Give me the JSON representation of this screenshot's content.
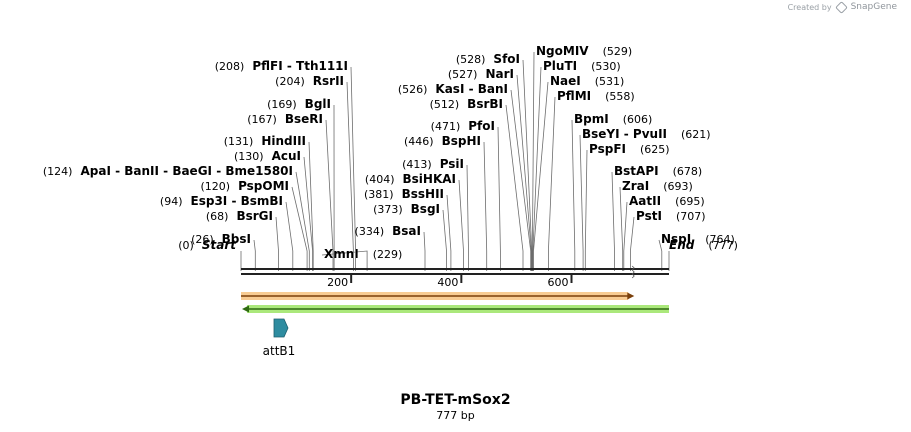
{
  "credit": {
    "prefix": "Created by",
    "brand": "SnapGene"
  },
  "sequence": {
    "name": "PB-TET-mSox2",
    "length_label": "777 bp",
    "length": 777
  },
  "ruler": {
    "ticks": [
      "200",
      "400",
      "600"
    ],
    "tick_values": [
      200,
      400,
      600
    ]
  },
  "sites": [
    {
      "names": [
        "NspI"
      ],
      "pos": 764
    },
    {
      "names": [
        "PstI"
      ],
      "pos": 707
    },
    {
      "names": [
        "AatII"
      ],
      "pos": 695
    },
    {
      "names": [
        "ZraI"
      ],
      "pos": 693
    },
    {
      "names": [
        "BstAPI"
      ],
      "pos": 678
    },
    {
      "names": [
        "PspFI"
      ],
      "pos": 625
    },
    {
      "names": [
        "BseYI",
        "PvuII"
      ],
      "pos": 621
    },
    {
      "names": [
        "BpmI"
      ],
      "pos": 606
    },
    {
      "names": [
        "PflMI"
      ],
      "pos": 558
    },
    {
      "names": [
        "NaeI"
      ],
      "pos": 531
    },
    {
      "names": [
        "PluTI"
      ],
      "pos": 530
    },
    {
      "names": [
        "NgoMIV"
      ],
      "pos": 529
    },
    {
      "names": [
        "SfoI"
      ],
      "pos": 528
    },
    {
      "names": [
        "NarI"
      ],
      "pos": 527
    },
    {
      "names": [
        "KasI",
        "BanI"
      ],
      "pos": 526
    },
    {
      "names": [
        "BsrBI"
      ],
      "pos": 512
    },
    {
      "names": [
        "PfoI"
      ],
      "pos": 471
    },
    {
      "names": [
        "BspHI"
      ],
      "pos": 446
    },
    {
      "names": [
        "PsiI"
      ],
      "pos": 413
    },
    {
      "names": [
        "BsiHKAI"
      ],
      "pos": 404
    },
    {
      "names": [
        "BssHII"
      ],
      "pos": 381
    },
    {
      "names": [
        "BsgI"
      ],
      "pos": 373
    },
    {
      "names": [
        "BsaI"
      ],
      "pos": 334
    },
    {
      "names": [
        "XmnI"
      ],
      "pos": 229
    },
    {
      "names": [
        "PflFI",
        "Tth111I"
      ],
      "pos": 208
    },
    {
      "names": [
        "RsrII"
      ],
      "pos": 204
    },
    {
      "names": [
        "BglI"
      ],
      "pos": 169
    },
    {
      "names": [
        "BseRI"
      ],
      "pos": 167
    },
    {
      "names": [
        "HindIII"
      ],
      "pos": 131
    },
    {
      "names": [
        "AcuI"
      ],
      "pos": 130
    },
    {
      "names": [
        "ApaI",
        "BanII",
        "BaeGI",
        "Bme1580I"
      ],
      "pos": 124
    },
    {
      "names": [
        "PspOMI"
      ],
      "pos": 120
    },
    {
      "names": [
        "Esp3I",
        "BsmBI"
      ],
      "pos": 94
    },
    {
      "names": [
        "BsrGI"
      ],
      "pos": 68
    },
    {
      "names": [
        "BbsI"
      ],
      "pos": 26
    }
  ],
  "ends": [
    {
      "label": "Start",
      "pos": 0
    },
    {
      "label": "End",
      "pos": 777
    }
  ],
  "features": [
    {
      "type": "forward-arrow",
      "start": 0,
      "end": 714,
      "color": "#f2a23a",
      "outline": "#7a3f0a"
    },
    {
      "type": "reverse-arrow",
      "start": 0,
      "end": 777,
      "color": "#8fe04f",
      "outline": "#2f6b12"
    },
    {
      "type": "misc",
      "label": "attB1",
      "start": 60,
      "end": 85,
      "color": "#2e8ca0"
    }
  ],
  "colors": {
    "backbone": "#222222",
    "leader": "#6d6d6d",
    "text": "#000000"
  }
}
